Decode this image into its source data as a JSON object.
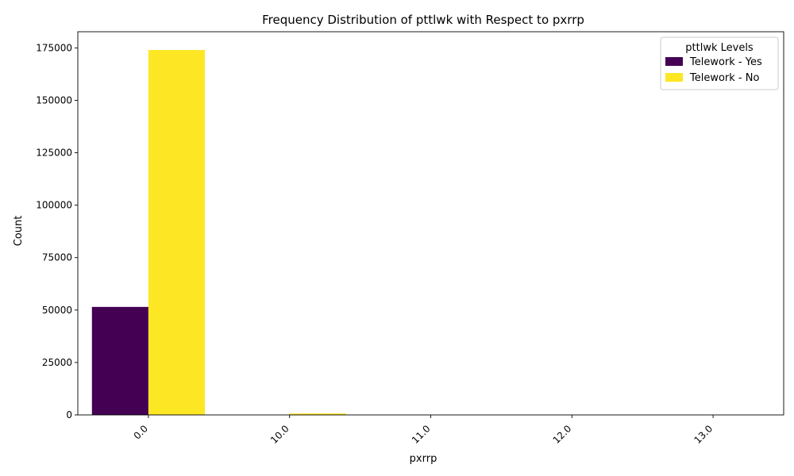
{
  "chart_data": {
    "type": "bar",
    "title": "Frequency Distribution of pttlwk with Respect to pxrrp",
    "xlabel": "pxrrp",
    "ylabel": "Count",
    "categories": [
      "0.0",
      "10.0",
      "11.0",
      "12.0",
      "13.0"
    ],
    "series": [
      {
        "name": "Telework - Yes",
        "color": "#440154",
        "values": [
          51500,
          0,
          0,
          0,
          0
        ]
      },
      {
        "name": "Telework - No",
        "color": "#fde725",
        "values": [
          174000,
          700,
          0,
          0,
          0
        ]
      }
    ],
    "ylim": [
      0,
      182700
    ],
    "yticks": [
      0,
      25000,
      50000,
      75000,
      100000,
      125000,
      150000,
      175000
    ],
    "ytick_labels": [
      "0",
      "25000",
      "50000",
      "75000",
      "100000",
      "125000",
      "150000",
      "175000"
    ],
    "grid": false,
    "legend": {
      "title": "pttlwk Levels",
      "placement": "top-right"
    }
  }
}
